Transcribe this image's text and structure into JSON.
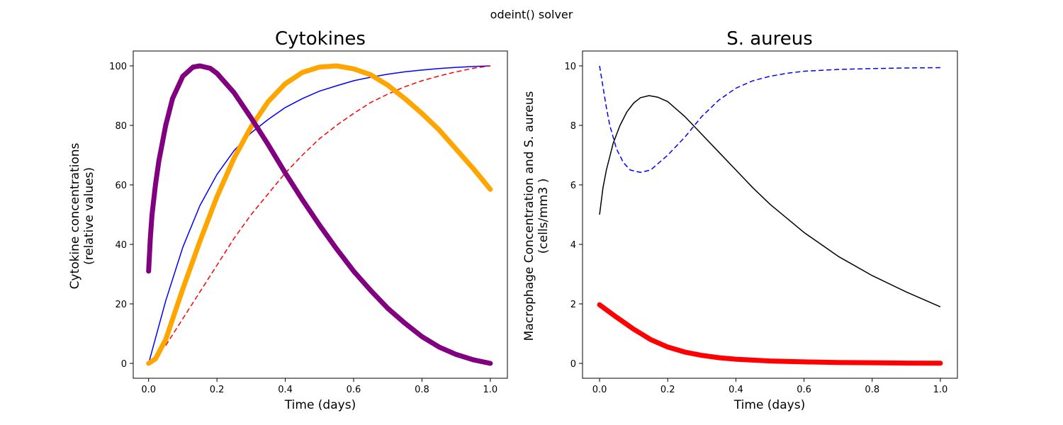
{
  "figure": {
    "suptitle": "odeint() solver"
  },
  "chart_data": [
    {
      "type": "line",
      "title": "Cytokines",
      "xlabel": "Time (days)",
      "ylabel": "Cytokine concentrations\n(relative values)",
      "xlim": [
        -0.045,
        1.05
      ],
      "ylim": [
        -5,
        105
      ],
      "xticks": [
        0.0,
        0.2,
        0.4,
        0.6,
        0.8,
        1.0
      ],
      "xtick_labels": [
        "0.0",
        "0.2",
        "0.4",
        "0.6",
        "0.8",
        "1.0"
      ],
      "yticks": [
        0,
        20,
        40,
        60,
        80,
        100
      ],
      "ytick_labels": [
        "0",
        "20",
        "40",
        "60",
        "80",
        "100"
      ],
      "grid": false,
      "series": [
        {
          "color": "#0000ff",
          "style": "solid",
          "width": 1.5,
          "x": [
            0,
            0.05,
            0.1,
            0.15,
            0.2,
            0.25,
            0.3,
            0.35,
            0.4,
            0.45,
            0.5,
            0.55,
            0.6,
            0.65,
            0.7,
            0.75,
            0.8,
            0.85,
            0.9,
            0.95,
            1.0
          ],
          "y": [
            0,
            21,
            39,
            53,
            63.5,
            71.5,
            77.5,
            82,
            86,
            89,
            91.5,
            93.3,
            95,
            96.2,
            97.2,
            98,
            98.6,
            99.1,
            99.5,
            99.8,
            100
          ]
        },
        {
          "color": "#ff0000",
          "style": "dashed",
          "width": 1.5,
          "x": [
            0.05,
            0.1,
            0.15,
            0.2,
            0.25,
            0.3,
            0.35,
            0.4,
            0.45,
            0.5,
            0.55,
            0.6,
            0.65,
            0.7,
            0.75,
            0.8,
            0.85,
            0.9,
            0.95,
            1.0
          ],
          "y": [
            6,
            15,
            24,
            33,
            42,
            50,
            57,
            64,
            70,
            75.5,
            80,
            84,
            87.7,
            90.5,
            93,
            95,
            96.6,
            98,
            99.2,
            100
          ]
        },
        {
          "color": "#ffa500",
          "style": "thick",
          "width": 7,
          "x": [
            0,
            0.02,
            0.05,
            0.1,
            0.15,
            0.2,
            0.25,
            0.3,
            0.35,
            0.4,
            0.45,
            0.5,
            0.55,
            0.6,
            0.65,
            0.7,
            0.75,
            0.8,
            0.85,
            0.9,
            0.95,
            1.0
          ],
          "y": [
            0,
            1.5,
            8,
            25,
            41,
            56,
            69,
            79.5,
            88,
            94,
            97.8,
            99.6,
            100,
            99,
            97,
            93.5,
            89,
            84,
            78.5,
            72,
            65.5,
            58.5
          ]
        },
        {
          "color": "#800080",
          "style": "thick",
          "width": 7,
          "x": [
            0,
            0.005,
            0.01,
            0.02,
            0.03,
            0.05,
            0.07,
            0.1,
            0.13,
            0.15,
            0.18,
            0.2,
            0.25,
            0.3,
            0.35,
            0.4,
            0.45,
            0.5,
            0.55,
            0.6,
            0.65,
            0.7,
            0.75,
            0.8,
            0.85,
            0.9,
            0.95,
            1.0
          ],
          "y": [
            31,
            42,
            50,
            60,
            68,
            80,
            89,
            96.5,
            99.6,
            100,
            99.2,
            97.5,
            91,
            82.5,
            73.5,
            64,
            55,
            46.5,
            38.5,
            31,
            24.5,
            18.5,
            13.5,
            9,
            5.5,
            3,
            1.2,
            0
          ]
        }
      ]
    },
    {
      "type": "line",
      "title": "S. aureus",
      "xlabel": "Time (days)",
      "ylabel": "Macrophage Concentration and S. aureus\n(cells/mm3 )",
      "xlim": [
        -0.05,
        1.05
      ],
      "ylim": [
        -0.5,
        10.5
      ],
      "xticks": [
        0.0,
        0.2,
        0.4,
        0.6,
        0.8,
        1.0
      ],
      "xtick_labels": [
        "0.0",
        "0.2",
        "0.4",
        "0.6",
        "0.8",
        "1.0"
      ],
      "yticks": [
        0,
        2,
        4,
        6,
        8,
        10
      ],
      "ytick_labels": [
        "0",
        "2",
        "4",
        "6",
        "8",
        "10"
      ],
      "grid": false,
      "series": [
        {
          "color": "#0000ff",
          "style": "dashed",
          "width": 1.5,
          "x": [
            0,
            0.01,
            0.02,
            0.03,
            0.05,
            0.07,
            0.09,
            0.12,
            0.15,
            0.2,
            0.25,
            0.3,
            0.35,
            0.4,
            0.45,
            0.5,
            0.55,
            0.6,
            0.7,
            0.8,
            0.9,
            1.0
          ],
          "y": [
            10,
            9.3,
            8.6,
            8.0,
            7.2,
            6.75,
            6.5,
            6.42,
            6.5,
            7.0,
            7.6,
            8.3,
            8.85,
            9.25,
            9.5,
            9.65,
            9.75,
            9.82,
            9.88,
            9.91,
            9.93,
            9.94
          ]
        },
        {
          "color": "#000000",
          "style": "solid",
          "width": 1.5,
          "x": [
            0,
            0.01,
            0.02,
            0.04,
            0.06,
            0.08,
            0.1,
            0.12,
            0.145,
            0.17,
            0.2,
            0.25,
            0.3,
            0.35,
            0.4,
            0.45,
            0.5,
            0.6,
            0.7,
            0.8,
            0.9,
            1.0
          ],
          "y": [
            5.0,
            5.9,
            6.5,
            7.4,
            8.0,
            8.45,
            8.75,
            8.93,
            9.0,
            8.95,
            8.8,
            8.3,
            7.7,
            7.1,
            6.5,
            5.9,
            5.35,
            4.4,
            3.6,
            2.95,
            2.4,
            1.9
          ]
        },
        {
          "color": "#ff0000",
          "style": "thick",
          "width": 7,
          "x": [
            0,
            0.05,
            0.1,
            0.15,
            0.2,
            0.25,
            0.3,
            0.35,
            0.4,
            0.5,
            0.6,
            0.7,
            0.8,
            0.9,
            1.0
          ],
          "y": [
            1.97,
            1.55,
            1.15,
            0.8,
            0.55,
            0.38,
            0.27,
            0.19,
            0.14,
            0.08,
            0.05,
            0.03,
            0.02,
            0.01,
            0.005
          ]
        }
      ]
    }
  ]
}
